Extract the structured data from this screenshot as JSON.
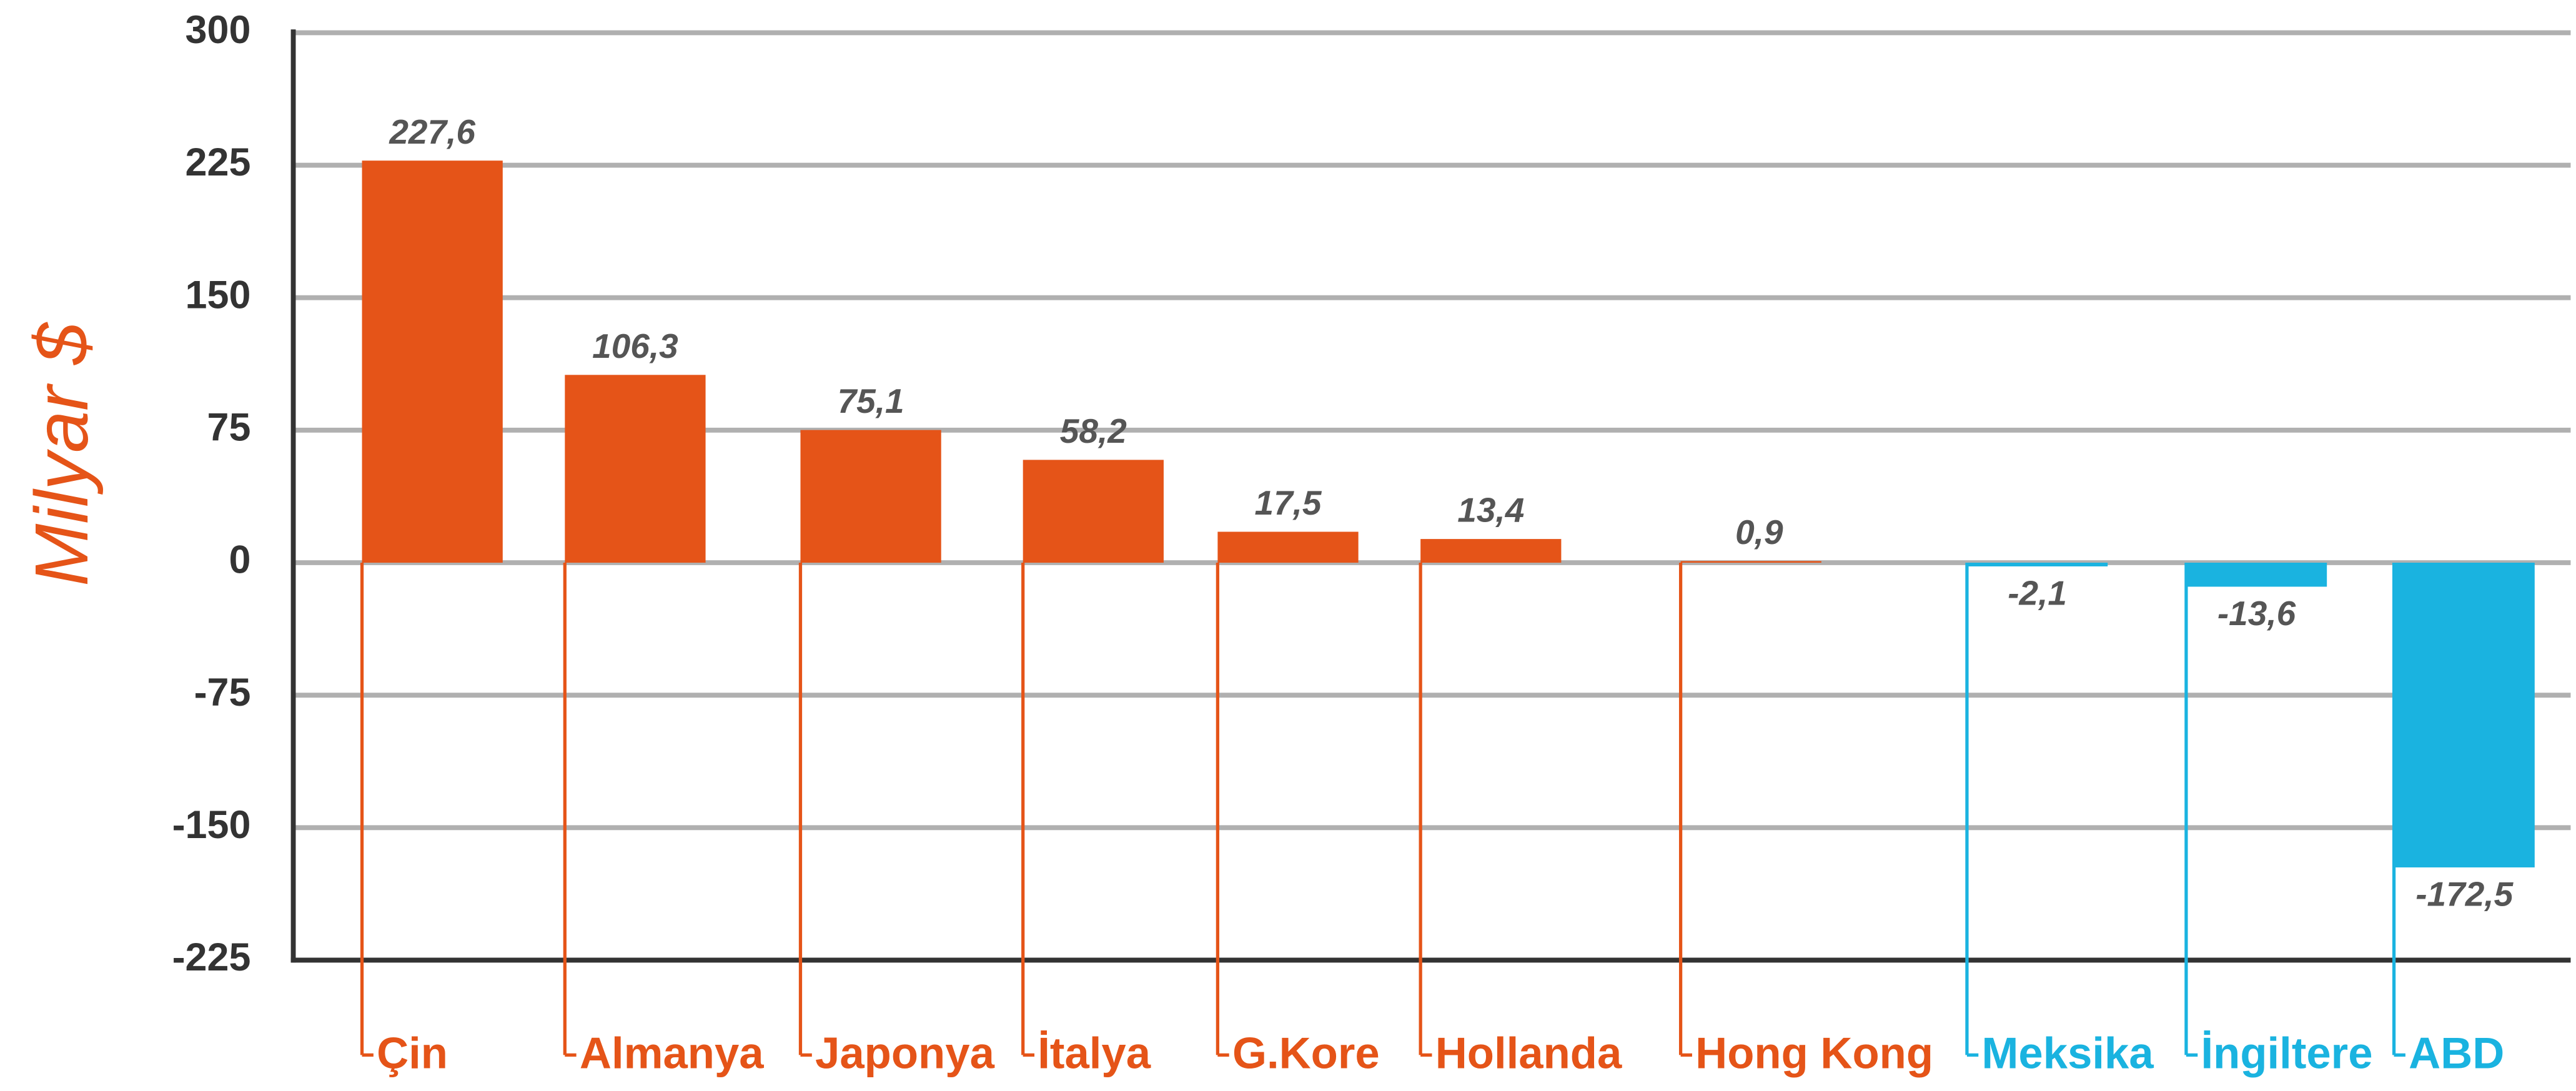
{
  "chart_data": {
    "type": "bar",
    "y_label": "Milyar $",
    "categories": [
      "Çin",
      "Almanya",
      "Japonya",
      "İtalya",
      "G.Kore",
      "Hollanda",
      "Hong Kong",
      "Meksika",
      "İngiltere",
      "ABD"
    ],
    "values": [
      227.6,
      106.3,
      75.1,
      58.2,
      17.5,
      13.4,
      0.9,
      -2.1,
      -13.6,
      -172.5
    ],
    "value_labels": [
      "227,6",
      "106,3",
      "75,1",
      "58,2",
      "17,5",
      "13,4",
      "0,9",
      "-2,1",
      "-13,6",
      "-172,5"
    ],
    "colors": [
      "#e55418",
      "#e55418",
      "#e55418",
      "#e55418",
      "#e55418",
      "#e55418",
      "#e55418",
      "#1ab3e0",
      "#1ab3e0",
      "#1ab3e0"
    ],
    "ylim": [
      -225,
      300
    ],
    "yticks": [
      300,
      225,
      150,
      75,
      0,
      -75,
      -150,
      -225
    ],
    "grid": true
  }
}
